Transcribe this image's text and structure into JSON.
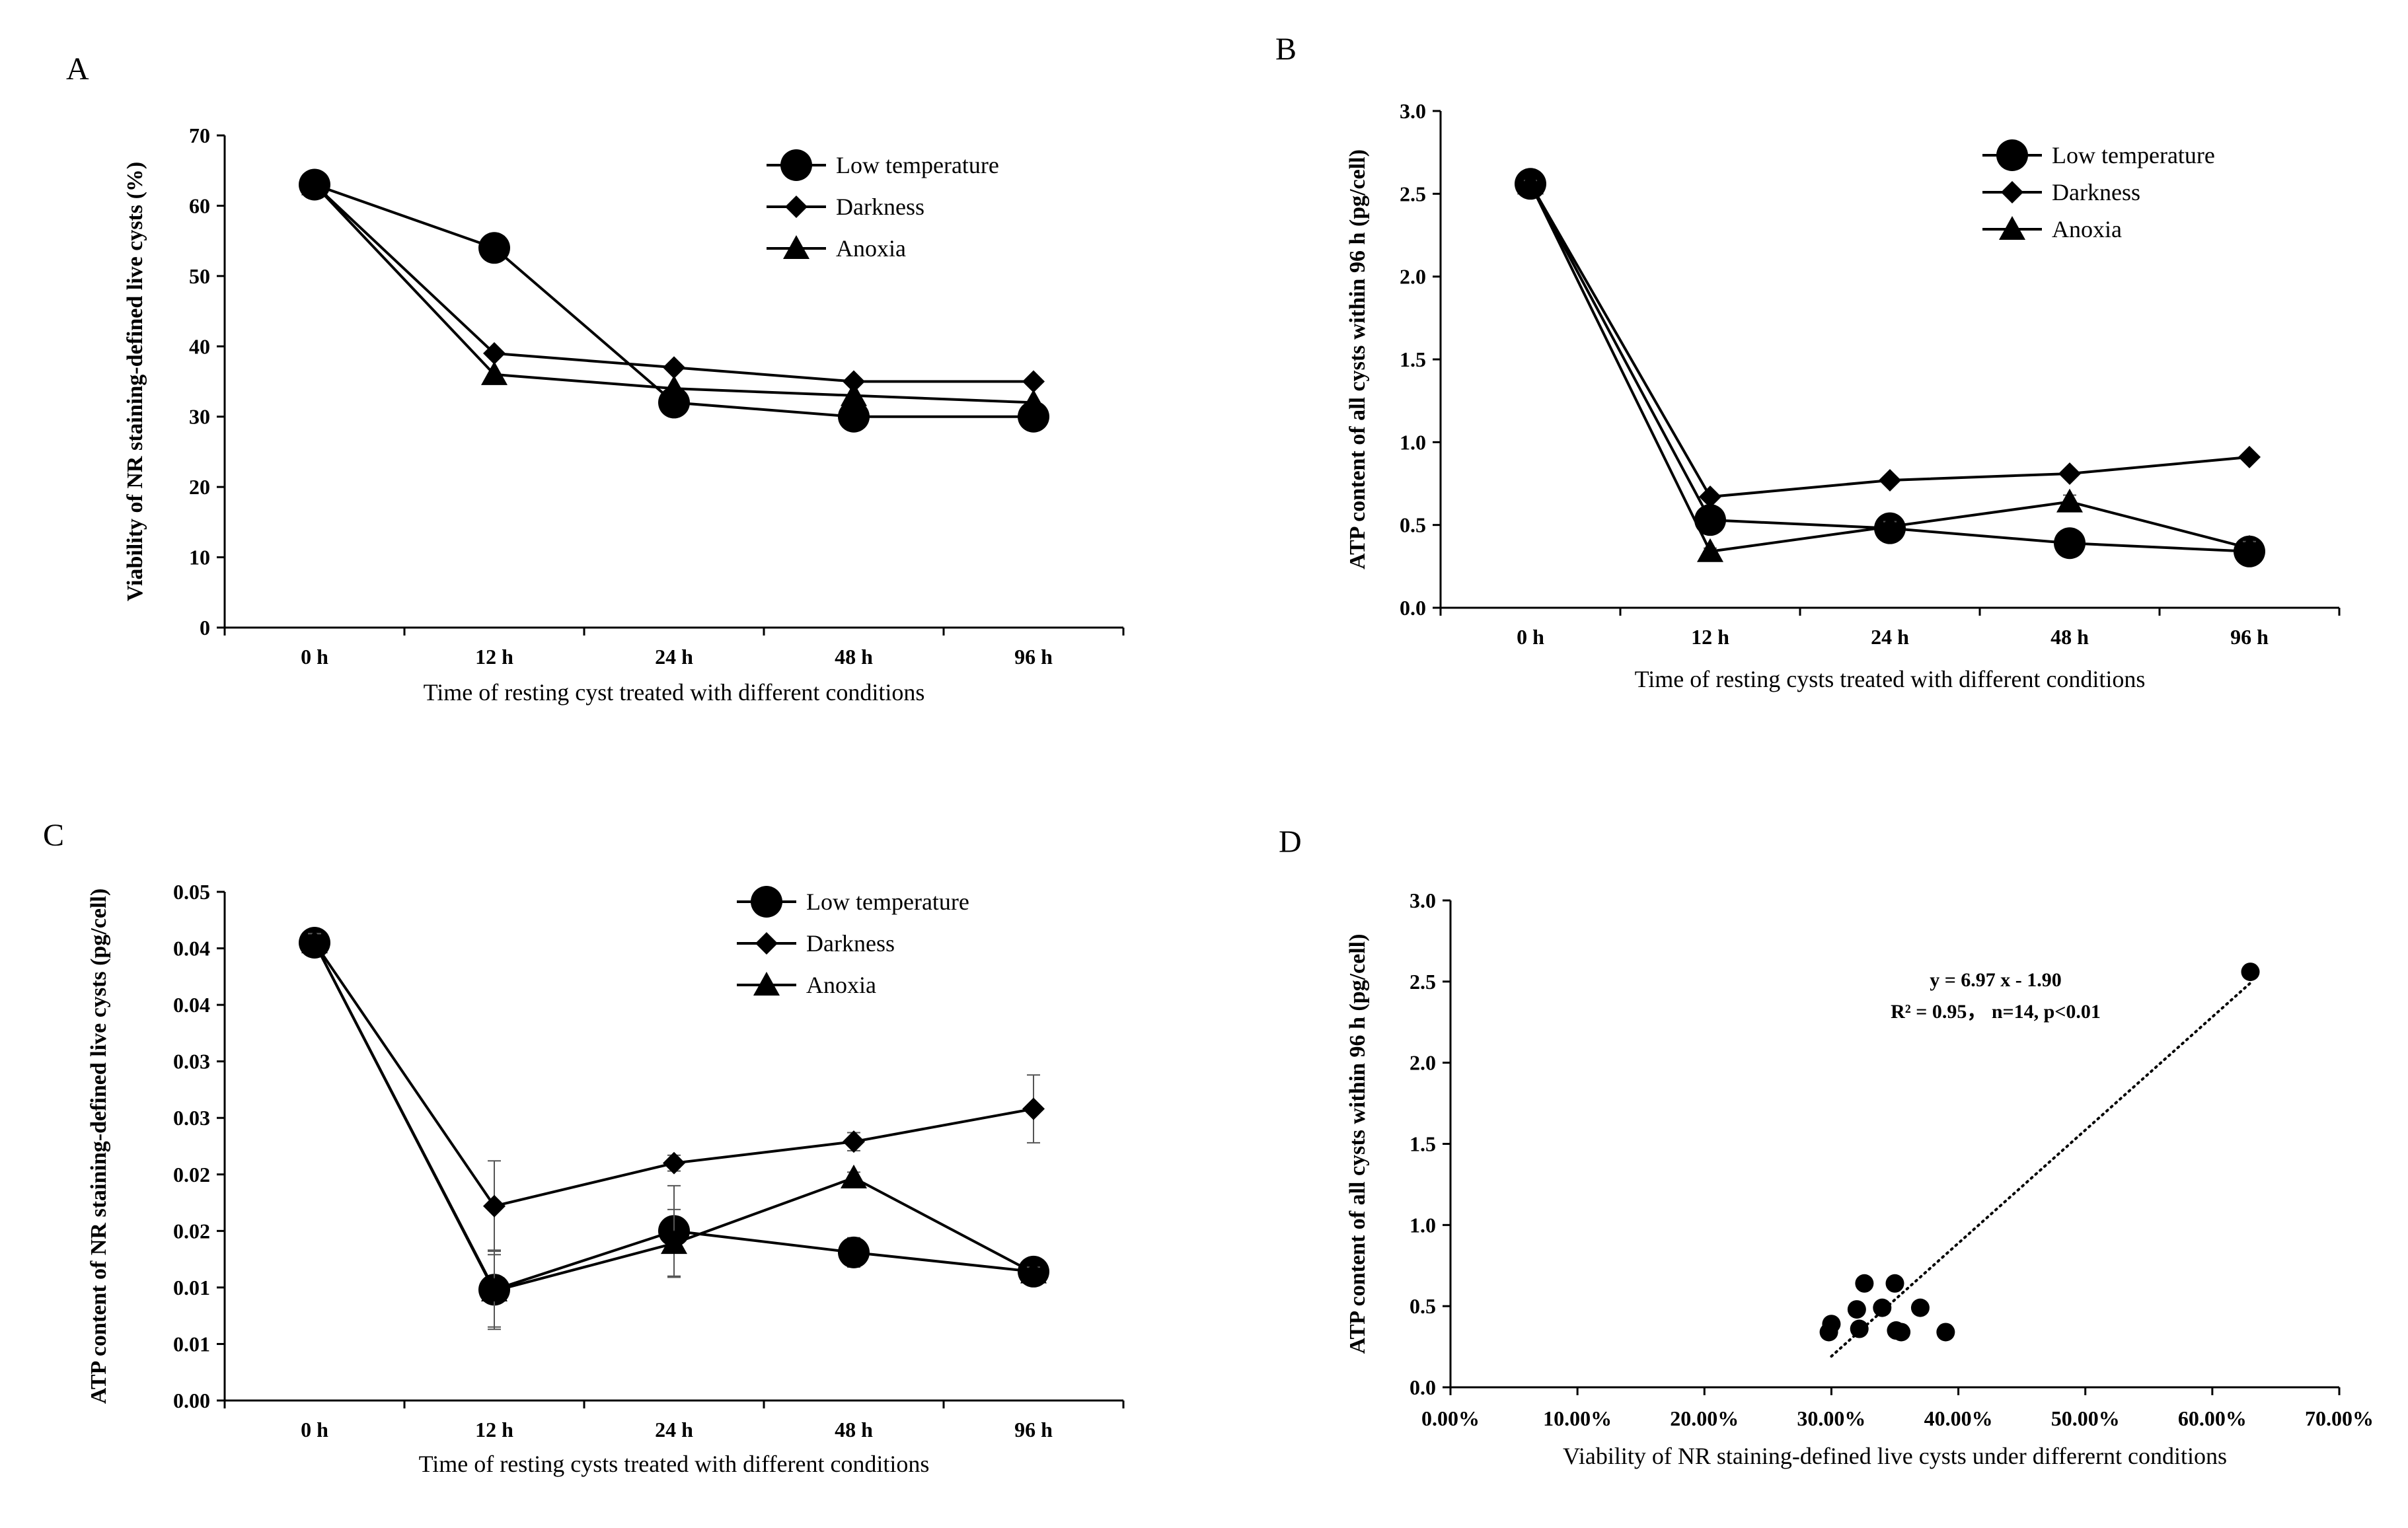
{
  "chart_data": [
    {
      "panel_label": "A",
      "type": "line",
      "title": "",
      "xlabel": "Time of resting cyst treated with different conditions",
      "ylabel": "Viability of NR staining-defined live cysts (%)",
      "categories": [
        "0 h",
        "12 h",
        "24 h",
        "48 h",
        "96 h"
      ],
      "ylim": [
        0,
        70
      ],
      "yticks": [
        0,
        10,
        20,
        30,
        40,
        50,
        60,
        70
      ],
      "ytick_labels": [
        "0",
        "10",
        "20",
        "30",
        "40",
        "50",
        "60",
        "70"
      ],
      "legend_position": "top-right",
      "series": [
        {
          "name": "Low temperature",
          "marker": "circle",
          "values": [
            63,
            54,
            32,
            30,
            30
          ]
        },
        {
          "name": "Darkness",
          "marker": "diamond",
          "values": [
            63,
            39,
            37,
            35,
            35
          ]
        },
        {
          "name": "Anoxia",
          "marker": "triangle",
          "values": [
            63,
            36,
            34,
            33,
            32
          ]
        }
      ]
    },
    {
      "panel_label": "B",
      "type": "line",
      "title": "",
      "xlabel": "Time of resting cysts treated with different conditions",
      "ylabel": "ATP content of  all cysts within 96 h (pg/cell)",
      "categories": [
        "0 h",
        "12 h",
        "24 h",
        "48 h",
        "96 h"
      ],
      "ylim": [
        0,
        3.0
      ],
      "yticks": [
        0,
        0.5,
        1.0,
        1.5,
        2.0,
        2.5,
        3.0
      ],
      "ytick_labels": [
        "0.0",
        "0.5",
        "1.0",
        "1.5",
        "2.0",
        "2.5",
        "3.0"
      ],
      "legend_position": "top-right",
      "series": [
        {
          "name": "Low temperature",
          "marker": "circle",
          "values": [
            2.56,
            0.53,
            0.48,
            0.39,
            0.34
          ],
          "errors": [
            0.02,
            0.02,
            0.04,
            0.02,
            0.05
          ]
        },
        {
          "name": "Darkness",
          "marker": "diamond",
          "values": [
            2.56,
            0.67,
            0.77,
            0.81,
            0.91
          ],
          "errors": [
            0.02,
            0.02,
            0.02,
            0.02,
            0.02
          ]
        },
        {
          "name": "Anoxia",
          "marker": "triangle",
          "values": [
            2.56,
            0.34,
            0.49,
            0.64,
            0.36
          ],
          "errors": [
            0.02,
            0.02,
            0.03,
            0.04,
            0.04
          ]
        }
      ]
    },
    {
      "panel_label": "C",
      "type": "line",
      "title": "",
      "xlabel": "Time of resting cysts treated with different conditions",
      "ylabel": "ATP content of NR staining-defined live cysts (pg/cell)",
      "categories": [
        "0 h",
        "12 h",
        "24 h",
        "48 h",
        "96 h"
      ],
      "ylim": [
        0,
        0.045
      ],
      "yticks": [
        0,
        0.005,
        0.01,
        0.015,
        0.02,
        0.025,
        0.03,
        0.035,
        0.04,
        0.045
      ],
      "ytick_labels": [
        "0.00",
        "0.01",
        "0.01",
        "0.02",
        "0.02",
        "0.03",
        "0.03",
        "0.04",
        "0.04",
        "0.05"
      ],
      "legend_position": "top-right",
      "series": [
        {
          "name": "Low temperature",
          "marker": "circle",
          "values": [
            0.0405,
            0.0098,
            0.015,
            0.0131,
            0.0114
          ],
          "errors": [
            0.0008,
            0.0035,
            0.004,
            0.0013,
            0.0006
          ]
        },
        {
          "name": "Darkness",
          "marker": "diamond",
          "values": [
            0.0405,
            0.0172,
            0.021,
            0.0229,
            0.0258
          ],
          "errors": [
            0.0008,
            0.004,
            0.0007,
            0.0008,
            0.003
          ]
        },
        {
          "name": "Anoxia",
          "marker": "triangle",
          "values": [
            0.0405,
            0.0097,
            0.0139,
            0.0197,
            0.0113
          ],
          "errors": [
            0.0008,
            0.0032,
            0.003,
            0.0005,
            0.0005
          ]
        }
      ]
    },
    {
      "panel_label": "D",
      "type": "scatter",
      "title": "",
      "xlabel": "Viability of NR staining-defined live cysts under differernt conditions",
      "ylabel": "ATP content of  all cysts within 96 h (pg/cell)",
      "xlim": [
        0,
        0.7
      ],
      "xticks": [
        0,
        0.1,
        0.2,
        0.3,
        0.4,
        0.5,
        0.6,
        0.7
      ],
      "xtick_labels": [
        "0.00%",
        "10.00%",
        "20.00%",
        "30.00%",
        "40.00%",
        "50.00%",
        "60.00%",
        "70.00%"
      ],
      "ylim": [
        0,
        3.0
      ],
      "yticks": [
        0,
        0.5,
        1.0,
        1.5,
        2.0,
        2.5,
        3.0
      ],
      "ytick_labels": [
        "0.0",
        "0.5",
        "1.0",
        "1.5",
        "2.0",
        "2.5",
        "3.0"
      ],
      "points": [
        {
          "x": 0.63,
          "y": 2.56
        },
        {
          "x": 0.3,
          "y": 0.39
        },
        {
          "x": 0.298,
          "y": 0.34
        },
        {
          "x": 0.32,
          "y": 0.48
        },
        {
          "x": 0.322,
          "y": 0.36
        },
        {
          "x": 0.326,
          "y": 0.64
        },
        {
          "x": 0.34,
          "y": 0.49
        },
        {
          "x": 0.35,
          "y": 0.64
        },
        {
          "x": 0.351,
          "y": 0.35
        },
        {
          "x": 0.355,
          "y": 0.34
        },
        {
          "x": 0.37,
          "y": 0.49
        },
        {
          "x": 0.39,
          "y": 0.34
        }
      ],
      "trendline": {
        "slope": 6.97,
        "intercept": -1.9,
        "x_range": [
          0.3,
          0.63
        ],
        "style": "dotted"
      },
      "annotation_lines": [
        "y = 6.97 x - 1.90",
        "R² = 0.95，  n=14, p<0.01"
      ]
    }
  ]
}
